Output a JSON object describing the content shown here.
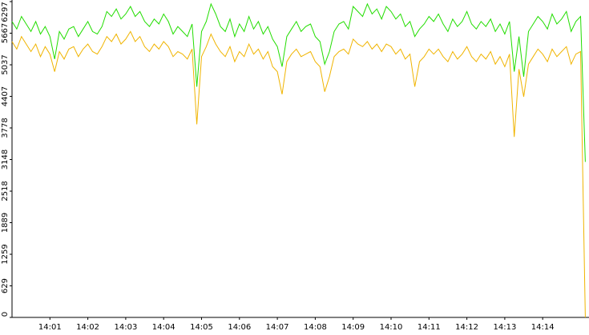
{
  "chart_data": {
    "type": "line",
    "categories": [
      null,
      null,
      null,
      null,
      null,
      null,
      null,
      null,
      "14:01",
      null,
      null,
      null,
      null,
      null,
      null,
      null,
      "14:02",
      null,
      null,
      null,
      null,
      null,
      null,
      null,
      "14:03",
      null,
      null,
      null,
      null,
      null,
      null,
      null,
      "14:04",
      null,
      null,
      null,
      null,
      null,
      null,
      null,
      "14:05",
      null,
      null,
      null,
      null,
      null,
      null,
      null,
      "14:06",
      null,
      null,
      null,
      null,
      null,
      null,
      null,
      "14:07",
      null,
      null,
      null,
      null,
      null,
      null,
      null,
      "14:08",
      null,
      null,
      null,
      null,
      null,
      null,
      null,
      "14:09",
      null,
      null,
      null,
      null,
      null,
      null,
      null,
      "14:10",
      null,
      null,
      null,
      null,
      null,
      null,
      null,
      "14:11",
      null,
      null,
      null,
      null,
      null,
      null,
      null,
      "14:12",
      null,
      null,
      null,
      null,
      null,
      null,
      null,
      "14:13",
      null,
      null,
      null,
      null,
      null,
      null,
      null,
      "14:14",
      null,
      null,
      null,
      null,
      null,
      null,
      null,
      null,
      null
    ],
    "series": [
      {
        "color": "#22dd00",
        "values": [
          5900,
          5750,
          6000,
          5850,
          5700,
          5900,
          5650,
          5800,
          5600,
          5150,
          5700,
          5550,
          5750,
          5800,
          5600,
          5750,
          5900,
          5700,
          5650,
          5800,
          6100,
          6000,
          6150,
          5950,
          6050,
          6200,
          6000,
          6100,
          5900,
          5800,
          5950,
          5850,
          6050,
          5900,
          5650,
          5800,
          5700,
          5600,
          5850,
          4600,
          5700,
          5900,
          6250,
          6050,
          5800,
          5700,
          5950,
          5600,
          5850,
          5700,
          6000,
          5750,
          5900,
          5650,
          5800,
          5550,
          5400,
          5000,
          5600,
          5750,
          5900,
          5700,
          5800,
          5850,
          5600,
          5500,
          5050,
          5300,
          5700,
          5850,
          5900,
          5750,
          6200,
          6100,
          6000,
          6250,
          6050,
          6150,
          5950,
          6200,
          6100,
          5950,
          6050,
          5800,
          5900,
          5600,
          5750,
          5850,
          6000,
          5900,
          6050,
          5850,
          5700,
          5950,
          5800,
          5900,
          6100,
          5850,
          5750,
          5900,
          5800,
          5950,
          5700,
          5850,
          5650,
          5900,
          4900,
          5600,
          4800,
          5700,
          5850,
          6000,
          5900,
          5750,
          6050,
          5850,
          5950,
          6100,
          5700,
          5900,
          6000,
          3100
        ]
      },
      {
        "color": "#f0b400",
        "values": [
          5500,
          5350,
          5600,
          5450,
          5300,
          5450,
          5200,
          5400,
          5250,
          4900,
          5300,
          5150,
          5350,
          5400,
          5200,
          5350,
          5450,
          5300,
          5250,
          5400,
          5600,
          5500,
          5650,
          5450,
          5550,
          5700,
          5500,
          5600,
          5400,
          5300,
          5450,
          5350,
          5500,
          5400,
          5200,
          5300,
          5250,
          5150,
          5350,
          3850,
          5200,
          5400,
          5650,
          5450,
          5300,
          5200,
          5400,
          5100,
          5300,
          5200,
          5450,
          5250,
          5350,
          5150,
          5300,
          5000,
          4900,
          4450,
          5100,
          5250,
          5350,
          5200,
          5250,
          5300,
          5100,
          5000,
          4500,
          4800,
          5200,
          5300,
          5350,
          5250,
          5550,
          5450,
          5400,
          5500,
          5350,
          5450,
          5300,
          5450,
          5400,
          5250,
          5350,
          5150,
          5250,
          4600,
          5100,
          5200,
          5350,
          5250,
          5350,
          5200,
          5100,
          5300,
          5150,
          5250,
          5400,
          5200,
          5100,
          5250,
          5150,
          5300,
          5050,
          5200,
          5000,
          5250,
          3600,
          4950,
          4400,
          5050,
          5200,
          5350,
          5250,
          5100,
          5350,
          5200,
          5300,
          5400,
          5050,
          5250,
          5300,
          0
        ]
      }
    ],
    "ylim": [
      0,
      6297
    ],
    "yticks": [
      0,
      629,
      1259,
      1889,
      2518,
      3148,
      3778,
      4407,
      5037,
      5667,
      6297
    ]
  }
}
